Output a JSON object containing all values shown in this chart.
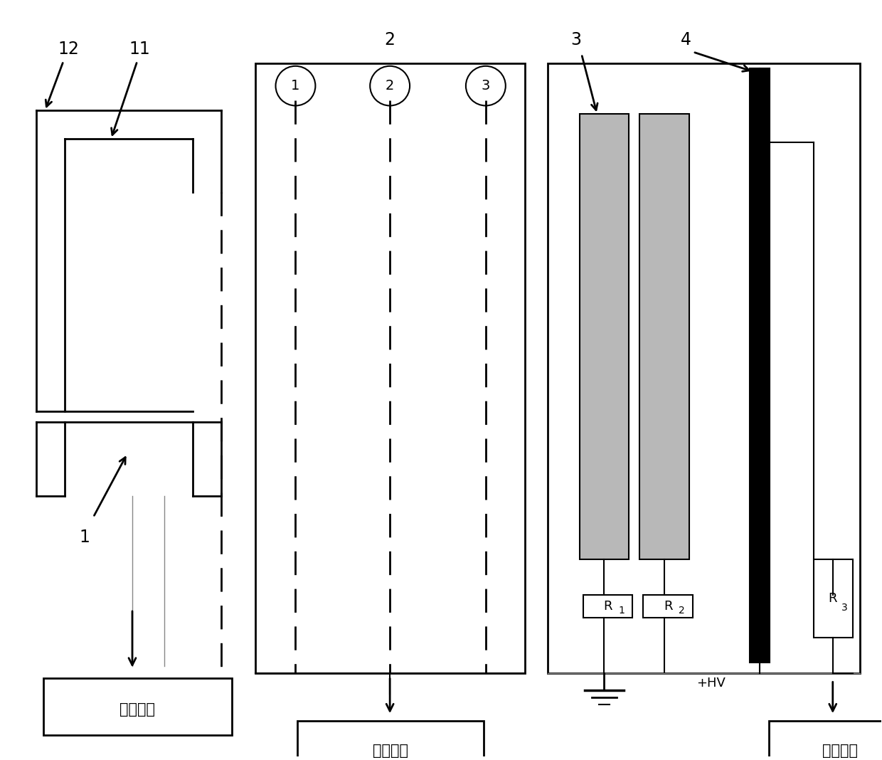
{
  "bg_color": "#ffffff",
  "fig_width": 12.4,
  "fig_height": 10.68,
  "box1_label": "电流检测",
  "box2_label": "扫描高压",
  "box3_label": "信号引出",
  "hv_label": "+HV",
  "circle_nums": [
    "1",
    "2",
    "3"
  ],
  "component_labels": [
    "12",
    "11",
    "2",
    "3",
    "4",
    "1"
  ],
  "resistor_labels": [
    "R",
    "1",
    "R",
    "2",
    "R",
    "3"
  ]
}
